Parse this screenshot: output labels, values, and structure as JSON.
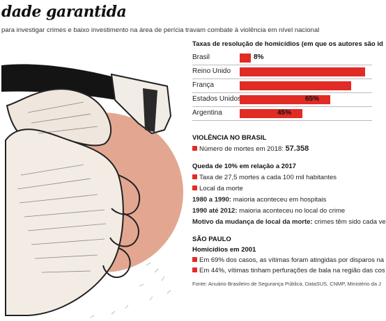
{
  "header": {
    "title": "dade garantida",
    "subtitle": "para investigar crimes e baixo investimento na área de perícia travam combate à violência em nível nacional"
  },
  "chart_data": {
    "type": "bar",
    "orientation": "horizontal",
    "title": "Taxas de resolução de homicídios (em que os autores são id",
    "categories": [
      "Brasil",
      "Reino Unido",
      "França",
      "Estados Unidos",
      "Argentina"
    ],
    "values": [
      8,
      90,
      80,
      65,
      45
    ],
    "data_labels": [
      "8%",
      "",
      "",
      "65%",
      "45%"
    ],
    "xlim": [
      0,
      100
    ],
    "colors": {
      "bar": "#e12b25"
    }
  },
  "violencia": {
    "heading": "VIOLÊNCIA NO BRASIL",
    "mortes_label": "Número de mortes em 2018:",
    "mortes_value": "57.358"
  },
  "queda": {
    "heading": "Queda de 10% em relação a 2017",
    "taxa": "Taxa de 27,5 mortes a cada 100 mil habitantes",
    "local": "Local da morte",
    "p1_bold": "1980 a 1990:",
    "p1_text": "maioria aconteceu em hospitais",
    "p2_bold": "1990 até 2012:",
    "p2_text": "maioria aconteceu no local do crime",
    "motivo_bold": "Motivo da mudança de local da morte:",
    "motivo_text": "crimes têm sido cada ve"
  },
  "sao_paulo": {
    "heading": "SÃO PAULO",
    "sub": "Homicídios em 2001",
    "item1": "Em 69% dos casos, as vítimas foram atingidas por disparos na",
    "item2": "Em 44%, vítimas tinham perfurações de bala na região das cos"
  },
  "source": "Fonte: Anuário Brasileiro de Segurança Pública, DataSUS, CNMP, Ministério da J",
  "colors": {
    "accent": "#e12b25"
  }
}
